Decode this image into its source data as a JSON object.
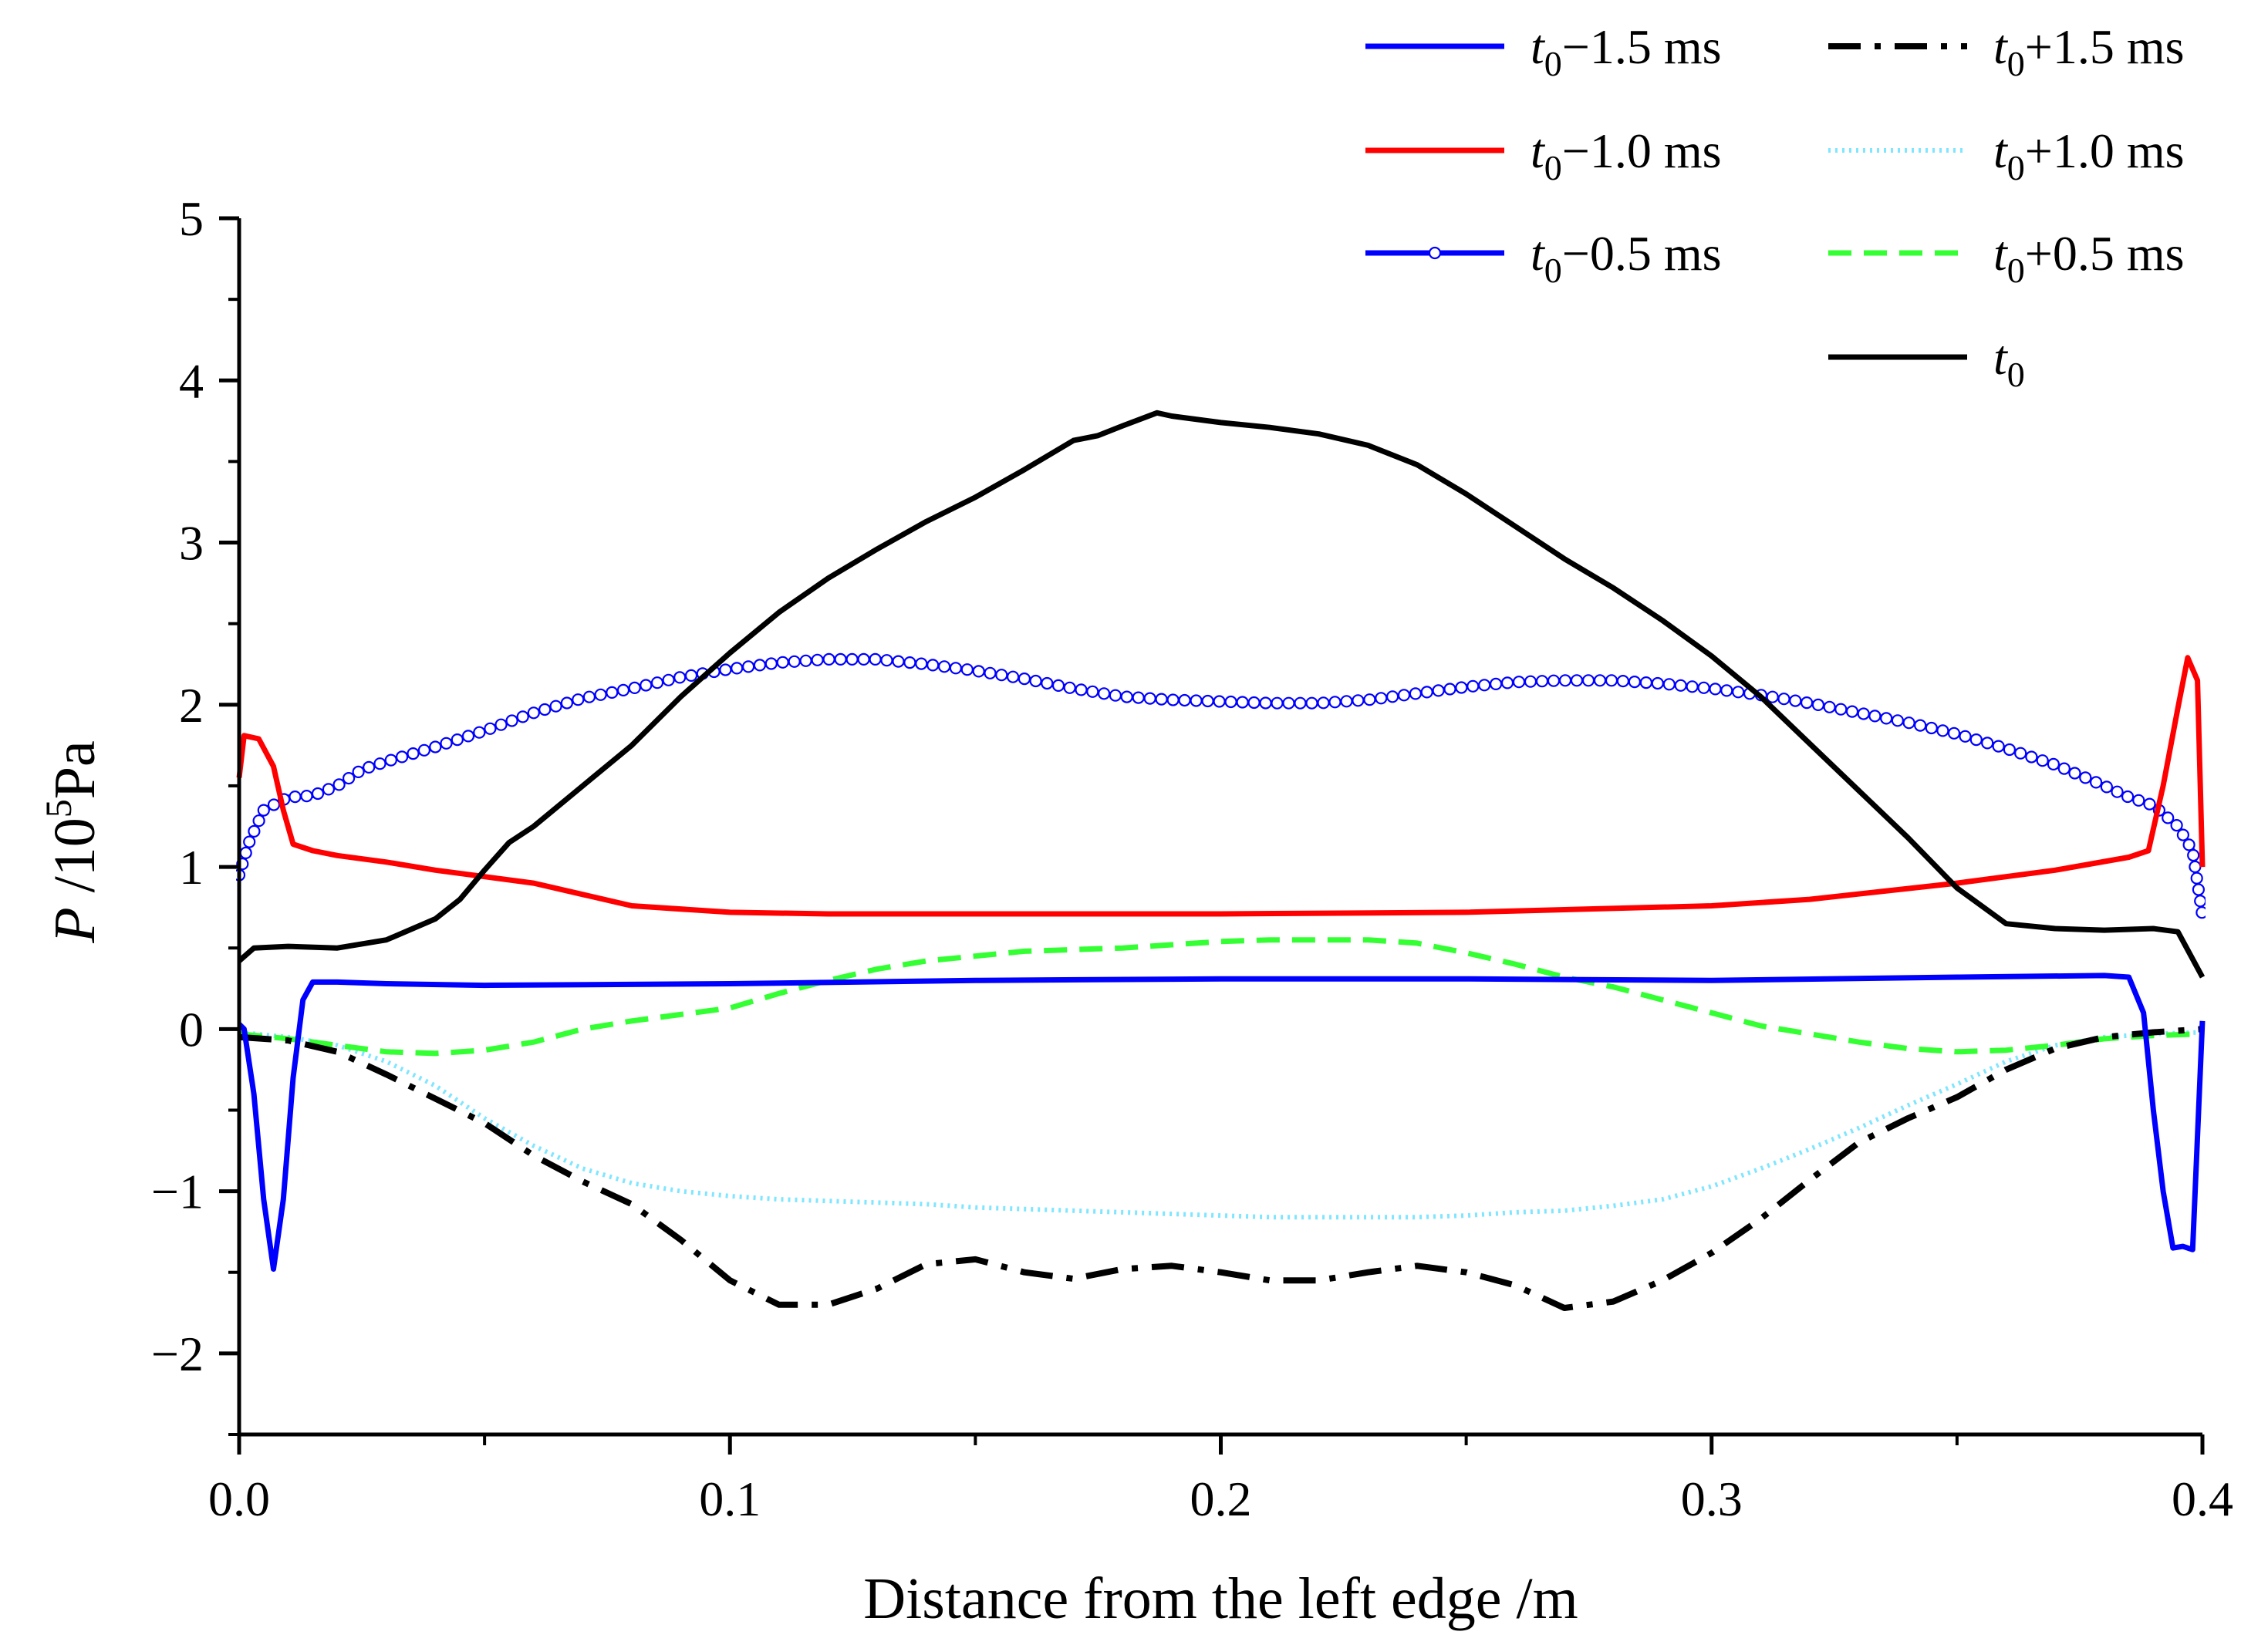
{
  "chart_data": {
    "type": "line",
    "title": "",
    "xlabel": "Distance from the left edge  /m",
    "ylabel": {
      "symbol": "P",
      "unit_prefix": " /10",
      "exponent": "5",
      "unit": "Pa"
    },
    "xlim": [
      0.0,
      0.4
    ],
    "ylim": [
      -2.5,
      5
    ],
    "x_ticks": [
      0.0,
      0.1,
      0.2,
      0.3,
      0.4
    ],
    "x_tick_labels": [
      "0.0",
      "0.1",
      "0.2",
      "0.3",
      "0.4"
    ],
    "y_ticks": [
      -2,
      -1,
      0,
      1,
      2,
      3,
      4,
      5
    ],
    "y_tick_labels": [
      "−2",
      "−1",
      "0",
      "1",
      "2",
      "3",
      "4",
      "5"
    ],
    "grid": false,
    "legend_position": "top-right",
    "series": [
      {
        "name": "t0−1.5 ms",
        "label_base": "t",
        "label_sub": "0",
        "label_rest": "−1.5 ms",
        "color": "#0000ff",
        "style": "solid",
        "marker": "none",
        "points": [
          [
            0.0,
            0.03
          ],
          [
            0.001,
            0.0
          ],
          [
            0.003,
            -0.4
          ],
          [
            0.005,
            -1.05
          ],
          [
            0.007,
            -1.48
          ],
          [
            0.009,
            -1.05
          ],
          [
            0.011,
            -0.3
          ],
          [
            0.013,
            0.18
          ],
          [
            0.015,
            0.29
          ],
          [
            0.02,
            0.29
          ],
          [
            0.03,
            0.28
          ],
          [
            0.05,
            0.27
          ],
          [
            0.1,
            0.28
          ],
          [
            0.15,
            0.3
          ],
          [
            0.2,
            0.31
          ],
          [
            0.25,
            0.31
          ],
          [
            0.3,
            0.3
          ],
          [
            0.35,
            0.32
          ],
          [
            0.38,
            0.33
          ],
          [
            0.385,
            0.32
          ],
          [
            0.388,
            0.1
          ],
          [
            0.39,
            -0.5
          ],
          [
            0.392,
            -1.0
          ],
          [
            0.394,
            -1.35
          ],
          [
            0.396,
            -1.34
          ],
          [
            0.398,
            -1.36
          ],
          [
            0.4,
            0.05
          ]
        ]
      },
      {
        "name": "t0−1.0 ms",
        "label_base": "t",
        "label_sub": "0",
        "label_rest": "−1.0 ms",
        "color": "#ff0000",
        "style": "solid",
        "marker": "none",
        "points": [
          [
            0.0,
            1.55
          ],
          [
            0.001,
            1.81
          ],
          [
            0.004,
            1.79
          ],
          [
            0.007,
            1.62
          ],
          [
            0.009,
            1.35
          ],
          [
            0.011,
            1.14
          ],
          [
            0.015,
            1.1
          ],
          [
            0.02,
            1.07
          ],
          [
            0.03,
            1.03
          ],
          [
            0.04,
            0.98
          ],
          [
            0.05,
            0.94
          ],
          [
            0.06,
            0.9
          ],
          [
            0.07,
            0.83
          ],
          [
            0.08,
            0.76
          ],
          [
            0.1,
            0.72
          ],
          [
            0.12,
            0.71
          ],
          [
            0.15,
            0.71
          ],
          [
            0.2,
            0.71
          ],
          [
            0.25,
            0.72
          ],
          [
            0.3,
            0.76
          ],
          [
            0.32,
            0.8
          ],
          [
            0.35,
            0.9
          ],
          [
            0.37,
            0.98
          ],
          [
            0.385,
            1.06
          ],
          [
            0.389,
            1.1
          ],
          [
            0.392,
            1.5
          ],
          [
            0.395,
            1.98
          ],
          [
            0.397,
            2.29
          ],
          [
            0.399,
            2.15
          ],
          [
            0.4,
            1.0
          ]
        ]
      },
      {
        "name": "t0−0.5 ms",
        "label_base": "t",
        "label_sub": "0",
        "label_rest": "−0.5 ms",
        "color": "#0000ff",
        "style": "solid",
        "marker": "circle",
        "points": [
          [
            0.0,
            0.95
          ],
          [
            0.002,
            1.15
          ],
          [
            0.005,
            1.35
          ],
          [
            0.01,
            1.43
          ],
          [
            0.015,
            1.44
          ],
          [
            0.02,
            1.5
          ],
          [
            0.025,
            1.6
          ],
          [
            0.03,
            1.65
          ],
          [
            0.04,
            1.74
          ],
          [
            0.05,
            1.84
          ],
          [
            0.06,
            1.95
          ],
          [
            0.07,
            2.04
          ],
          [
            0.08,
            2.1
          ],
          [
            0.09,
            2.17
          ],
          [
            0.1,
            2.22
          ],
          [
            0.11,
            2.26
          ],
          [
            0.12,
            2.28
          ],
          [
            0.13,
            2.28
          ],
          [
            0.14,
            2.25
          ],
          [
            0.15,
            2.21
          ],
          [
            0.16,
            2.16
          ],
          [
            0.17,
            2.1
          ],
          [
            0.18,
            2.05
          ],
          [
            0.19,
            2.03
          ],
          [
            0.2,
            2.02
          ],
          [
            0.21,
            2.01
          ],
          [
            0.22,
            2.01
          ],
          [
            0.23,
            2.03
          ],
          [
            0.24,
            2.07
          ],
          [
            0.25,
            2.11
          ],
          [
            0.26,
            2.14
          ],
          [
            0.27,
            2.15
          ],
          [
            0.28,
            2.15
          ],
          [
            0.29,
            2.13
          ],
          [
            0.3,
            2.1
          ],
          [
            0.31,
            2.06
          ],
          [
            0.32,
            2.01
          ],
          [
            0.33,
            1.95
          ],
          [
            0.34,
            1.89
          ],
          [
            0.35,
            1.82
          ],
          [
            0.36,
            1.73
          ],
          [
            0.37,
            1.63
          ],
          [
            0.38,
            1.5
          ],
          [
            0.385,
            1.43
          ],
          [
            0.39,
            1.38
          ],
          [
            0.395,
            1.25
          ],
          [
            0.398,
            1.1
          ],
          [
            0.4,
            0.7
          ]
        ]
      },
      {
        "name": "t0+1.5 ms",
        "label_base": "t",
        "label_sub": "0",
        "label_rest": "+1.5 ms",
        "color": "#000000",
        "style": "dashdot",
        "marker": "none",
        "points": [
          [
            0.0,
            -0.05
          ],
          [
            0.01,
            -0.07
          ],
          [
            0.02,
            -0.14
          ],
          [
            0.03,
            -0.28
          ],
          [
            0.04,
            -0.43
          ],
          [
            0.05,
            -0.58
          ],
          [
            0.06,
            -0.78
          ],
          [
            0.07,
            -0.94
          ],
          [
            0.08,
            -1.08
          ],
          [
            0.09,
            -1.3
          ],
          [
            0.1,
            -1.55
          ],
          [
            0.11,
            -1.7
          ],
          [
            0.12,
            -1.7
          ],
          [
            0.13,
            -1.6
          ],
          [
            0.14,
            -1.45
          ],
          [
            0.15,
            -1.42
          ],
          [
            0.16,
            -1.5
          ],
          [
            0.17,
            -1.54
          ],
          [
            0.18,
            -1.48
          ],
          [
            0.19,
            -1.46
          ],
          [
            0.2,
            -1.5
          ],
          [
            0.21,
            -1.55
          ],
          [
            0.22,
            -1.55
          ],
          [
            0.23,
            -1.5
          ],
          [
            0.24,
            -1.46
          ],
          [
            0.25,
            -1.5
          ],
          [
            0.26,
            -1.58
          ],
          [
            0.27,
            -1.72
          ],
          [
            0.28,
            -1.68
          ],
          [
            0.29,
            -1.55
          ],
          [
            0.3,
            -1.38
          ],
          [
            0.31,
            -1.17
          ],
          [
            0.32,
            -0.93
          ],
          [
            0.33,
            -0.7
          ],
          [
            0.34,
            -0.55
          ],
          [
            0.35,
            -0.42
          ],
          [
            0.36,
            -0.25
          ],
          [
            0.37,
            -0.12
          ],
          [
            0.38,
            -0.05
          ],
          [
            0.39,
            -0.02
          ],
          [
            0.4,
            0.0
          ]
        ]
      },
      {
        "name": "t0+1.0 ms",
        "label_base": "t",
        "label_sub": "0",
        "label_rest": "+1.0 ms",
        "color": "#7fe6ff",
        "style": "dotted",
        "marker": "none",
        "points": [
          [
            0.0,
            -0.02
          ],
          [
            0.01,
            -0.05
          ],
          [
            0.02,
            -0.1
          ],
          [
            0.03,
            -0.2
          ],
          [
            0.04,
            -0.35
          ],
          [
            0.05,
            -0.55
          ],
          [
            0.06,
            -0.72
          ],
          [
            0.07,
            -0.86
          ],
          [
            0.08,
            -0.95
          ],
          [
            0.09,
            -1.0
          ],
          [
            0.1,
            -1.03
          ],
          [
            0.11,
            -1.05
          ],
          [
            0.12,
            -1.06
          ],
          [
            0.13,
            -1.07
          ],
          [
            0.14,
            -1.08
          ],
          [
            0.15,
            -1.1
          ],
          [
            0.16,
            -1.11
          ],
          [
            0.17,
            -1.12
          ],
          [
            0.18,
            -1.13
          ],
          [
            0.19,
            -1.14
          ],
          [
            0.2,
            -1.15
          ],
          [
            0.21,
            -1.16
          ],
          [
            0.22,
            -1.16
          ],
          [
            0.23,
            -1.16
          ],
          [
            0.24,
            -1.16
          ],
          [
            0.25,
            -1.15
          ],
          [
            0.26,
            -1.13
          ],
          [
            0.27,
            -1.12
          ],
          [
            0.28,
            -1.09
          ],
          [
            0.29,
            -1.05
          ],
          [
            0.3,
            -0.97
          ],
          [
            0.31,
            -0.86
          ],
          [
            0.32,
            -0.74
          ],
          [
            0.33,
            -0.61
          ],
          [
            0.34,
            -0.47
          ],
          [
            0.35,
            -0.34
          ],
          [
            0.36,
            -0.2
          ],
          [
            0.37,
            -0.1
          ],
          [
            0.38,
            -0.05
          ],
          [
            0.39,
            -0.03
          ],
          [
            0.4,
            -0.02
          ]
        ]
      },
      {
        "name": "t0+0.5 ms",
        "label_base": "t",
        "label_sub": "0",
        "label_rest": "+0.5 ms",
        "color": "#33ff33",
        "style": "dashed",
        "marker": "none",
        "points": [
          [
            0.0,
            -0.03
          ],
          [
            0.01,
            -0.06
          ],
          [
            0.02,
            -0.1
          ],
          [
            0.03,
            -0.14
          ],
          [
            0.04,
            -0.15
          ],
          [
            0.05,
            -0.13
          ],
          [
            0.06,
            -0.08
          ],
          [
            0.07,
            0.0
          ],
          [
            0.08,
            0.05
          ],
          [
            0.09,
            0.09
          ],
          [
            0.1,
            0.13
          ],
          [
            0.11,
            0.22
          ],
          [
            0.12,
            0.3
          ],
          [
            0.13,
            0.37
          ],
          [
            0.14,
            0.42
          ],
          [
            0.15,
            0.45
          ],
          [
            0.16,
            0.48
          ],
          [
            0.17,
            0.49
          ],
          [
            0.18,
            0.5
          ],
          [
            0.19,
            0.52
          ],
          [
            0.2,
            0.54
          ],
          [
            0.21,
            0.55
          ],
          [
            0.22,
            0.55
          ],
          [
            0.23,
            0.55
          ],
          [
            0.24,
            0.53
          ],
          [
            0.25,
            0.47
          ],
          [
            0.26,
            0.4
          ],
          [
            0.27,
            0.32
          ],
          [
            0.28,
            0.26
          ],
          [
            0.29,
            0.18
          ],
          [
            0.3,
            0.1
          ],
          [
            0.31,
            0.02
          ],
          [
            0.32,
            -0.03
          ],
          [
            0.33,
            -0.08
          ],
          [
            0.34,
            -0.12
          ],
          [
            0.35,
            -0.14
          ],
          [
            0.36,
            -0.13
          ],
          [
            0.37,
            -0.1
          ],
          [
            0.38,
            -0.06
          ],
          [
            0.39,
            -0.04
          ],
          [
            0.4,
            -0.03
          ]
        ]
      },
      {
        "name": "t0",
        "label_base": "t",
        "label_sub": "0",
        "label_rest": "",
        "color": "#000000",
        "style": "solid",
        "marker": "none",
        "points": [
          [
            0.0,
            0.42
          ],
          [
            0.003,
            0.5
          ],
          [
            0.01,
            0.51
          ],
          [
            0.02,
            0.5
          ],
          [
            0.03,
            0.55
          ],
          [
            0.04,
            0.68
          ],
          [
            0.045,
            0.8
          ],
          [
            0.05,
            0.98
          ],
          [
            0.055,
            1.15
          ],
          [
            0.06,
            1.25
          ],
          [
            0.07,
            1.5
          ],
          [
            0.08,
            1.75
          ],
          [
            0.09,
            2.05
          ],
          [
            0.1,
            2.32
          ],
          [
            0.11,
            2.57
          ],
          [
            0.12,
            2.78
          ],
          [
            0.13,
            2.96
          ],
          [
            0.14,
            3.13
          ],
          [
            0.15,
            3.28
          ],
          [
            0.16,
            3.45
          ],
          [
            0.17,
            3.63
          ],
          [
            0.175,
            3.66
          ],
          [
            0.18,
            3.72
          ],
          [
            0.187,
            3.8
          ],
          [
            0.19,
            3.78
          ],
          [
            0.2,
            3.74
          ],
          [
            0.21,
            3.71
          ],
          [
            0.22,
            3.67
          ],
          [
            0.23,
            3.6
          ],
          [
            0.24,
            3.48
          ],
          [
            0.25,
            3.3
          ],
          [
            0.26,
            3.1
          ],
          [
            0.27,
            2.9
          ],
          [
            0.28,
            2.72
          ],
          [
            0.29,
            2.52
          ],
          [
            0.3,
            2.3
          ],
          [
            0.31,
            2.05
          ],
          [
            0.32,
            1.76
          ],
          [
            0.33,
            1.47
          ],
          [
            0.34,
            1.18
          ],
          [
            0.35,
            0.87
          ],
          [
            0.36,
            0.65
          ],
          [
            0.37,
            0.62
          ],
          [
            0.38,
            0.61
          ],
          [
            0.39,
            0.62
          ],
          [
            0.395,
            0.6
          ],
          [
            0.4,
            0.32
          ]
        ]
      }
    ],
    "legend_columns": [
      [
        0,
        1,
        2
      ],
      [
        3,
        4,
        5,
        6
      ]
    ]
  }
}
